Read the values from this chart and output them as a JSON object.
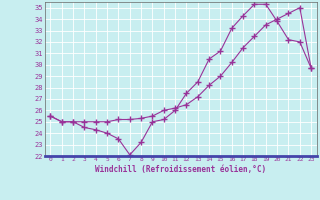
{
  "xlabel": "Windchill (Refroidissement éolien,°C)",
  "xlim": [
    -0.5,
    23.5
  ],
  "ylim": [
    22,
    35.5
  ],
  "xticks": [
    0,
    1,
    2,
    3,
    4,
    5,
    6,
    7,
    8,
    9,
    10,
    11,
    12,
    13,
    14,
    15,
    16,
    17,
    18,
    19,
    20,
    21,
    22,
    23
  ],
  "yticks": [
    22,
    23,
    24,
    25,
    26,
    27,
    28,
    29,
    30,
    31,
    32,
    33,
    34,
    35
  ],
  "bg_color": "#c8eef0",
  "line_color": "#993399",
  "grid_color": "#ffffff",
  "line1_x": [
    0,
    1,
    2,
    3,
    4,
    5,
    6,
    7,
    8,
    9,
    10,
    11,
    12,
    13,
    14,
    15,
    16,
    17,
    18,
    19,
    20,
    21,
    22,
    23
  ],
  "line1_y": [
    25.5,
    25.0,
    25.0,
    24.5,
    24.3,
    24.0,
    23.5,
    22.1,
    23.2,
    25.0,
    25.2,
    26.0,
    27.5,
    28.5,
    30.5,
    31.2,
    33.2,
    34.3,
    35.3,
    35.3,
    33.8,
    32.2,
    32.0,
    29.7
  ],
  "line2_x": [
    0,
    1,
    2,
    3,
    4,
    5,
    6,
    7,
    8,
    9,
    10,
    11,
    12,
    13,
    14,
    15,
    16,
    17,
    18,
    19,
    20,
    21,
    22,
    23
  ],
  "line2_y": [
    25.5,
    25.0,
    25.0,
    25.0,
    25.0,
    25.0,
    25.2,
    25.2,
    25.3,
    25.5,
    26.0,
    26.2,
    26.5,
    27.2,
    28.2,
    29.0,
    30.2,
    31.5,
    32.5,
    33.5,
    34.0,
    34.5,
    35.0,
    29.7
  ],
  "marker": "+",
  "markersize": 4,
  "linewidth": 0.8
}
